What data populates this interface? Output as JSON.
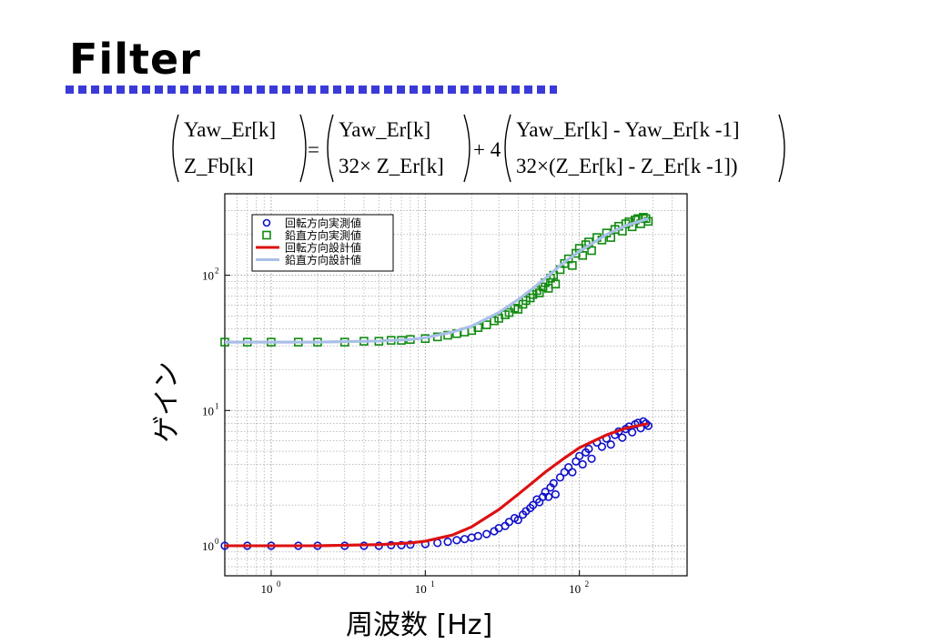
{
  "slide": {
    "title": "Filter"
  },
  "equation": {
    "lhs_top": "Yaw_Er[k]",
    "lhs_bottom": "Z_Fb[k]",
    "equals": "=",
    "m1_top": "Yaw_Er[k]",
    "m1_bottom": "32× Z_Er[k]",
    "plus": "+ 4",
    "m2_top": "Yaw_Er[k]  - Yaw_Er[k  -1]",
    "m2_bottom": "32×(Z_Er[k] - Z_Er[k -1])"
  },
  "chart_data": {
    "type": "scatter",
    "xlabel": "周波数 [Hz]",
    "ylabel": "ゲイン",
    "xscale": "log",
    "yscale": "log",
    "xlim": [
      0.5,
      500
    ],
    "ylim": [
      0.6,
      400
    ],
    "grid": true,
    "legend_position": "top-left",
    "x_ticks": [
      {
        "value": 1,
        "base": "10",
        "exp": "0"
      },
      {
        "value": 10,
        "base": "10",
        "exp": "1"
      },
      {
        "value": 100,
        "base": "10",
        "exp": "2"
      }
    ],
    "y_ticks": [
      {
        "value": 1,
        "base": "10",
        "exp": "0"
      },
      {
        "value": 10,
        "base": "10",
        "exp": "1"
      },
      {
        "value": 100,
        "base": "10",
        "exp": "2"
      }
    ],
    "series": [
      {
        "name": "回転方向実測値",
        "kind": "scatter",
        "marker": "circle",
        "color": "#1010c8",
        "x": [
          0.5,
          0.7,
          1,
          1.5,
          2,
          3,
          4,
          5,
          6,
          7,
          8,
          10,
          12,
          14,
          16,
          18,
          20,
          22,
          25,
          28,
          30,
          33,
          35,
          38,
          40,
          43,
          45,
          48,
          50,
          53,
          55,
          58,
          60,
          63,
          65,
          68,
          70,
          75,
          80,
          85,
          90,
          95,
          100,
          105,
          110,
          115,
          120,
          130,
          140,
          150,
          160,
          170,
          180,
          190,
          200,
          210,
          220,
          230,
          240,
          250,
          260,
          270,
          280
        ],
        "y": [
          1.0,
          1.0,
          1.0,
          1.0,
          1.0,
          1.0,
          1.0,
          1.0,
          1.01,
          1.01,
          1.02,
          1.03,
          1.05,
          1.07,
          1.1,
          1.12,
          1.15,
          1.18,
          1.22,
          1.28,
          1.35,
          1.4,
          1.5,
          1.6,
          1.55,
          1.7,
          1.8,
          1.9,
          2.0,
          2.2,
          2.1,
          2.3,
          2.5,
          2.3,
          2.7,
          2.9,
          2.4,
          3.2,
          3.5,
          3.8,
          3.5,
          4.2,
          4.6,
          4.0,
          4.9,
          5.2,
          4.4,
          5.8,
          5.4,
          6.2,
          5.6,
          6.6,
          7.0,
          6.3,
          7.3,
          7.6,
          6.9,
          7.9,
          8.1,
          7.4,
          8.3,
          8.0,
          7.7
        ]
      },
      {
        "name": "鉛直方向実測値",
        "kind": "scatter",
        "marker": "square",
        "color": "#108a10",
        "x": [
          0.5,
          0.7,
          1,
          1.5,
          2,
          3,
          4,
          5,
          6,
          7,
          8,
          10,
          12,
          14,
          16,
          18,
          20,
          22,
          25,
          28,
          30,
          33,
          35,
          38,
          40,
          43,
          45,
          48,
          50,
          53,
          55,
          58,
          60,
          63,
          65,
          68,
          70,
          75,
          80,
          85,
          90,
          95,
          100,
          105,
          110,
          115,
          120,
          130,
          140,
          150,
          160,
          170,
          180,
          190,
          200,
          210,
          220,
          230,
          240,
          250,
          260,
          270,
          280
        ],
        "y": [
          32,
          32,
          32,
          32,
          32,
          32,
          32.5,
          32.5,
          33,
          33,
          33.5,
          34,
          35,
          36,
          37,
          38,
          39,
          41,
          43,
          46,
          48,
          51,
          53,
          57,
          56,
          61,
          65,
          68,
          72,
          77,
          74,
          82,
          88,
          80,
          95,
          100,
          86,
          110,
          122,
          132,
          118,
          145,
          158,
          140,
          168,
          176,
          152,
          190,
          182,
          205,
          190,
          218,
          230,
          212,
          240,
          248,
          228,
          256,
          262,
          240,
          268,
          262,
          250
        ]
      },
      {
        "name": "回転方向設計値",
        "kind": "line",
        "color": "#dd1111",
        "x": [
          0.5,
          1,
          2,
          5,
          8,
          10,
          15,
          20,
          30,
          40,
          50,
          60,
          80,
          100,
          150,
          200,
          280
        ],
        "y": [
          1.0,
          1.0,
          1.0,
          1.02,
          1.05,
          1.08,
          1.2,
          1.38,
          1.85,
          2.4,
          2.95,
          3.5,
          4.45,
          5.3,
          6.6,
          7.4,
          8.0
        ]
      },
      {
        "name": "鉛直方向設計値",
        "kind": "line",
        "color": "#a9bfe8",
        "x": [
          0.5,
          1,
          2,
          5,
          8,
          10,
          15,
          20,
          30,
          40,
          50,
          60,
          80,
          100,
          150,
          200,
          280
        ],
        "y": [
          32,
          32,
          32,
          32.6,
          33.5,
          34.5,
          38,
          42,
          53,
          66,
          80,
          95,
          125,
          150,
          200,
          232,
          262
        ]
      }
    ]
  }
}
